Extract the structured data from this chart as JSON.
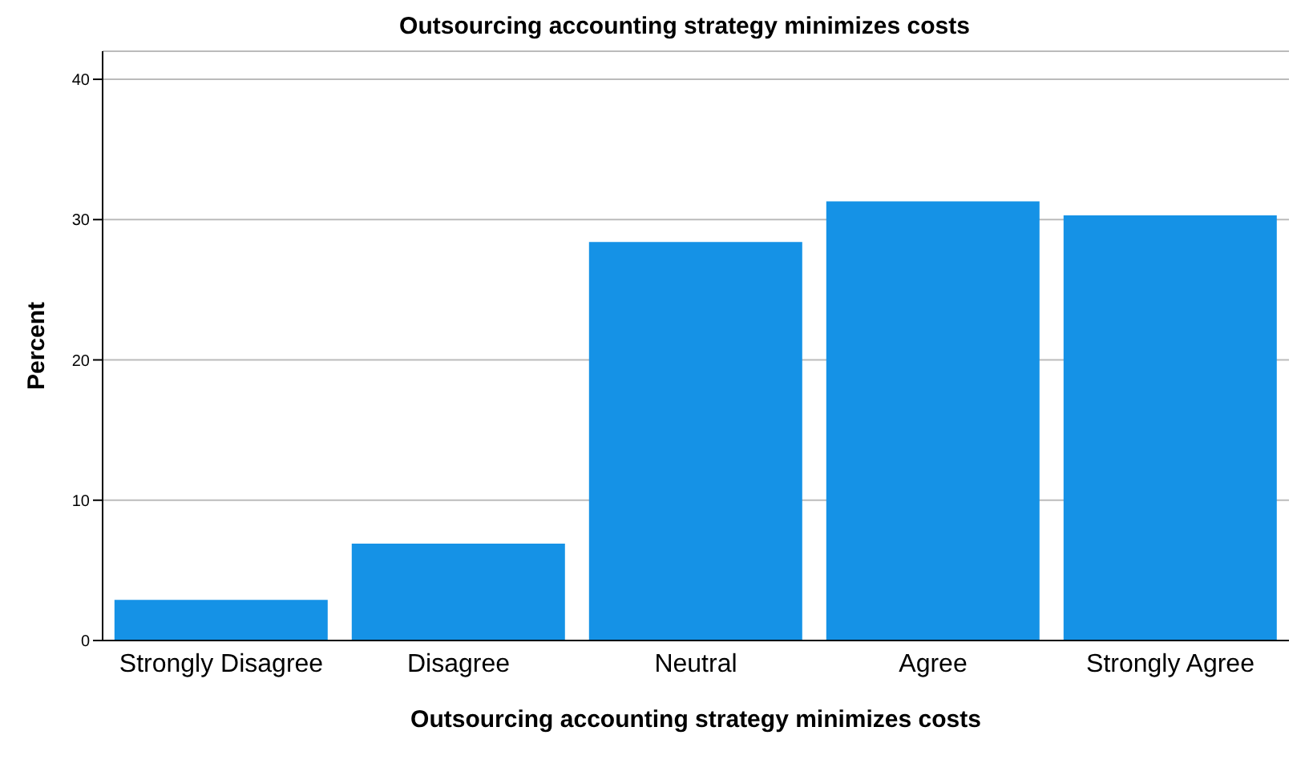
{
  "chart_data": {
    "type": "bar",
    "title": "Outsourcing accounting strategy minimizes costs",
    "xlabel": "Outsourcing accounting strategy minimizes costs",
    "ylabel": "Percent",
    "categories": [
      "Strongly Disagree",
      "Disagree",
      "Neutral",
      "Agree",
      "Strongly Agree"
    ],
    "values": [
      2.9,
      6.9,
      28.4,
      31.3,
      30.3
    ],
    "color": "#1592e6",
    "ylim": [
      0,
      42
    ],
    "yticks": [
      0,
      10,
      20,
      30,
      40
    ],
    "grid": "y"
  }
}
